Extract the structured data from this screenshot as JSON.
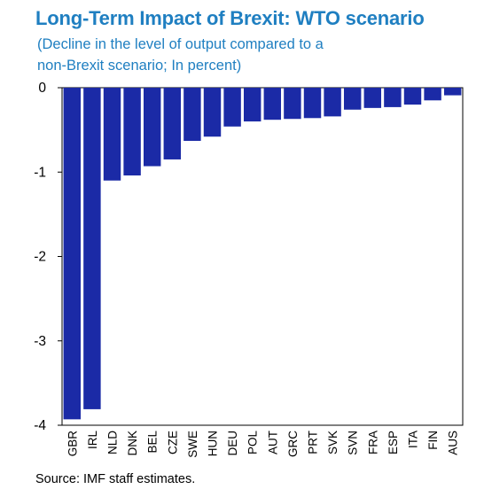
{
  "title": "Long-Term Impact of Brexit: WTO scenario",
  "subtitle_line1": "(Decline in the level of output compared to a",
  "subtitle_line2": "non-Brexit scenario; In percent)",
  "source": "Source: IMF staff estimates.",
  "colors": {
    "title": "#1f7fc1",
    "bar": "#1b2aa6"
  },
  "chart_data": {
    "type": "bar",
    "categories": [
      "GBR",
      "IRL",
      "NLD",
      "DNK",
      "BEL",
      "CZE",
      "SWE",
      "HUN",
      "DEU",
      "POL",
      "AUT",
      "GRC",
      "PRT",
      "SVK",
      "SVN",
      "FRA",
      "ESP",
      "ITA",
      "FIN",
      "AUS"
    ],
    "values": [
      -3.93,
      -3.81,
      -1.1,
      -1.04,
      -0.93,
      -0.85,
      -0.63,
      -0.58,
      -0.46,
      -0.4,
      -0.38,
      -0.37,
      -0.36,
      -0.34,
      -0.26,
      -0.24,
      -0.23,
      -0.2,
      -0.15,
      -0.09
    ],
    "yticks": [
      0,
      -1,
      -2,
      -3,
      -4
    ],
    "ylim": [
      -4,
      0
    ],
    "xlabel": "",
    "ylabel": "",
    "grid": false,
    "legend": "none"
  }
}
